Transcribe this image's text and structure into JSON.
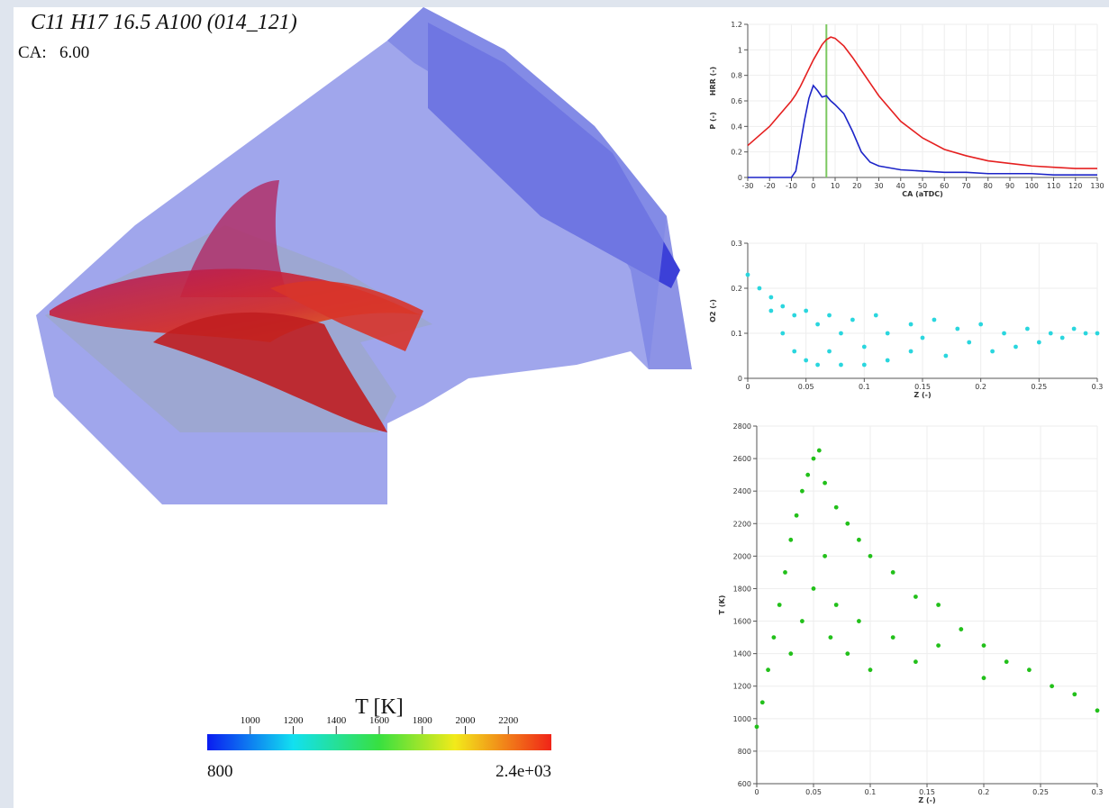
{
  "scene": {
    "title": "C11 H17 16.5 A100 (014_121)",
    "ca_label": "CA:",
    "ca_value": "6.00",
    "colorbar": {
      "title": "T [K]",
      "limits": [
        800,
        {
          "value": 2400,
          "label": "2.4e+03"
        }
      ],
      "ticks": [
        1000,
        1200,
        1400,
        1600,
        1800,
        2000,
        2200
      ]
    }
  },
  "chart_data": [
    {
      "type": "line",
      "xlabel": "CA (aTDC)",
      "ylabels": [
        "P (-)",
        "HRR (-)"
      ],
      "x": [
        -30,
        -20,
        -10,
        -8,
        -6,
        -4,
        -2,
        0,
        2,
        4,
        6,
        8,
        10,
        14,
        18,
        22,
        26,
        30,
        40,
        50,
        60,
        70,
        80,
        90,
        100,
        110,
        120,
        130
      ],
      "series": [
        {
          "color": "#e52020",
          "values": [
            0.25,
            0.4,
            0.6,
            0.65,
            0.71,
            0.78,
            0.85,
            0.92,
            0.98,
            1.04,
            1.08,
            1.1,
            1.09,
            1.03,
            0.94,
            0.84,
            0.74,
            0.64,
            0.44,
            0.31,
            0.22,
            0.17,
            0.13,
            0.11,
            0.09,
            0.08,
            0.07,
            0.07
          ]
        },
        {
          "color": "#1c24c8",
          "values": [
            0,
            0,
            0,
            0.05,
            0.25,
            0.45,
            0.62,
            0.72,
            0.68,
            0.63,
            0.64,
            0.6,
            0.57,
            0.5,
            0.36,
            0.2,
            0.12,
            0.09,
            0.06,
            0.05,
            0.04,
            0.04,
            0.03,
            0.03,
            0.03,
            0.02,
            0.02,
            0.02
          ]
        }
      ],
      "vline": 6,
      "vline_color": "#7cc860",
      "xlim": [
        -30,
        130
      ],
      "xticks": [
        -30,
        -20,
        -10,
        0,
        10,
        20,
        30,
        40,
        50,
        60,
        70,
        80,
        90,
        100,
        110,
        120,
        130
      ],
      "ylim": [
        0,
        1.2
      ],
      "yticks": [
        0,
        0.2,
        0.4,
        0.6,
        0.8,
        1,
        1.2
      ],
      "grid": true
    },
    {
      "type": "scatter",
      "xlabel": "Z (-)",
      "ylabel": "O2 (-)",
      "color": "#2ad6de",
      "x": [
        0,
        0.01,
        0.02,
        0.02,
        0.03,
        0.03,
        0.04,
        0.04,
        0.05,
        0.05,
        0.06,
        0.06,
        0.07,
        0.07,
        0.08,
        0.08,
        0.09,
        0.1,
        0.1,
        0.11,
        0.12,
        0.12,
        0.14,
        0.14,
        0.15,
        0.16,
        0.17,
        0.18,
        0.19,
        0.2,
        0.21,
        0.22,
        0.23,
        0.24,
        0.25,
        0.26,
        0.27,
        0.28,
        0.29,
        0.3
      ],
      "values": [
        0.23,
        0.2,
        0.18,
        0.15,
        0.16,
        0.1,
        0.14,
        0.06,
        0.15,
        0.04,
        0.12,
        0.03,
        0.14,
        0.06,
        0.1,
        0.03,
        0.13,
        0.07,
        0.03,
        0.14,
        0.1,
        0.04,
        0.12,
        0.06,
        0.09,
        0.13,
        0.05,
        0.11,
        0.08,
        0.12,
        0.06,
        0.1,
        0.07,
        0.11,
        0.08,
        0.1,
        0.09,
        0.11,
        0.1,
        0.1
      ],
      "xlim": [
        0,
        0.3
      ],
      "xticks": [
        0,
        0.05,
        0.1,
        0.15,
        0.2,
        0.25,
        0.3
      ],
      "ylim": [
        0,
        0.3
      ],
      "yticks": [
        0,
        0.1,
        0.2,
        0.3
      ],
      "grid": true
    },
    {
      "type": "scatter",
      "xlabel": "Z (-)",
      "ylabel": "T (K)",
      "color": "#22c01a",
      "x": [
        0,
        0.005,
        0.01,
        0.015,
        0.02,
        0.025,
        0.03,
        0.03,
        0.035,
        0.04,
        0.04,
        0.045,
        0.05,
        0.05,
        0.055,
        0.06,
        0.06,
        0.065,
        0.07,
        0.07,
        0.08,
        0.08,
        0.09,
        0.09,
        0.1,
        0.1,
        0.12,
        0.12,
        0.14,
        0.14,
        0.16,
        0.16,
        0.18,
        0.2,
        0.2,
        0.22,
        0.24,
        0.26,
        0.28,
        0.3
      ],
      "values": [
        950,
        1100,
        1300,
        1500,
        1700,
        1900,
        2100,
        1400,
        2250,
        2400,
        1600,
        2500,
        2600,
        1800,
        2650,
        2450,
        2000,
        1500,
        2300,
        1700,
        2200,
        1400,
        2100,
        1600,
        2000,
        1300,
        1900,
        1500,
        1750,
        1350,
        1700,
        1450,
        1550,
        1450,
        1250,
        1350,
        1300,
        1200,
        1150,
        1050
      ],
      "xlim": [
        0,
        0.3
      ],
      "xticks": [
        0,
        0.05,
        0.1,
        0.15,
        0.2,
        0.25,
        0.3
      ],
      "ylim": [
        600,
        2800
      ],
      "yticks": [
        600,
        800,
        1000,
        1200,
        1400,
        1600,
        1800,
        2000,
        2200,
        2400,
        2600,
        2800
      ],
      "grid": true
    }
  ]
}
